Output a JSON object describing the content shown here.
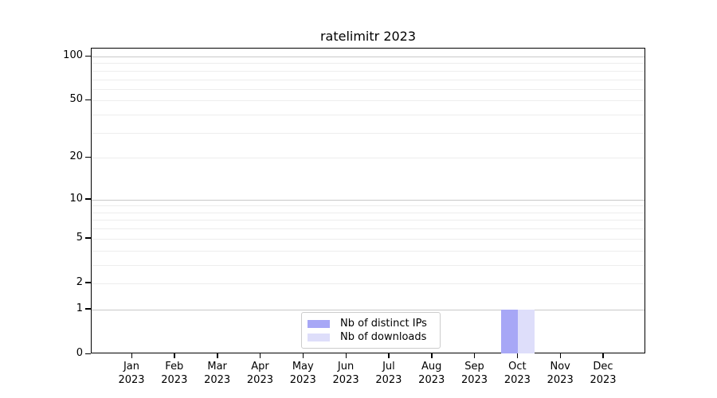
{
  "chart_data": {
    "type": "bar",
    "title": "ratelimitr 2023",
    "categories": [
      "Jan 2023",
      "Feb 2023",
      "Mar 2023",
      "Apr 2023",
      "May 2023",
      "Jun 2023",
      "Jul 2023",
      "Aug 2023",
      "Sep 2023",
      "Oct 2023",
      "Nov 2023",
      "Dec 2023"
    ],
    "series": [
      {
        "name": "Nb of distinct IPs",
        "color": "#a7a7f6",
        "values": [
          0,
          0,
          0,
          0,
          0,
          0,
          0,
          0,
          0,
          1,
          0,
          0
        ]
      },
      {
        "name": "Nb of downloads",
        "color": "#dedefa",
        "values": [
          0,
          0,
          0,
          0,
          0,
          0,
          0,
          0,
          0,
          1,
          0,
          0
        ]
      }
    ],
    "xlabel": "",
    "ylabel": "",
    "yscale": "log1p",
    "ylim": [
      0,
      113
    ],
    "yticks": [
      0,
      1,
      2,
      5,
      10,
      20,
      50,
      100
    ],
    "major_gridlines": [
      1,
      10,
      100
    ],
    "minor_gridlines": [
      2,
      3,
      4,
      5,
      6,
      7,
      8,
      9,
      20,
      30,
      40,
      50,
      60,
      70,
      80,
      90
    ],
    "grid": true,
    "legend_position": "lower center inside",
    "colors": {
      "bar_distinct_ips": "#a7a7f6",
      "bar_downloads": "#dedefa",
      "major_gridline": "#c8c8c8",
      "minor_gridline": "#ededed",
      "axis": "#000000",
      "text": "#000000",
      "background": "#ffffff",
      "legend_border": "#cccccc"
    }
  }
}
